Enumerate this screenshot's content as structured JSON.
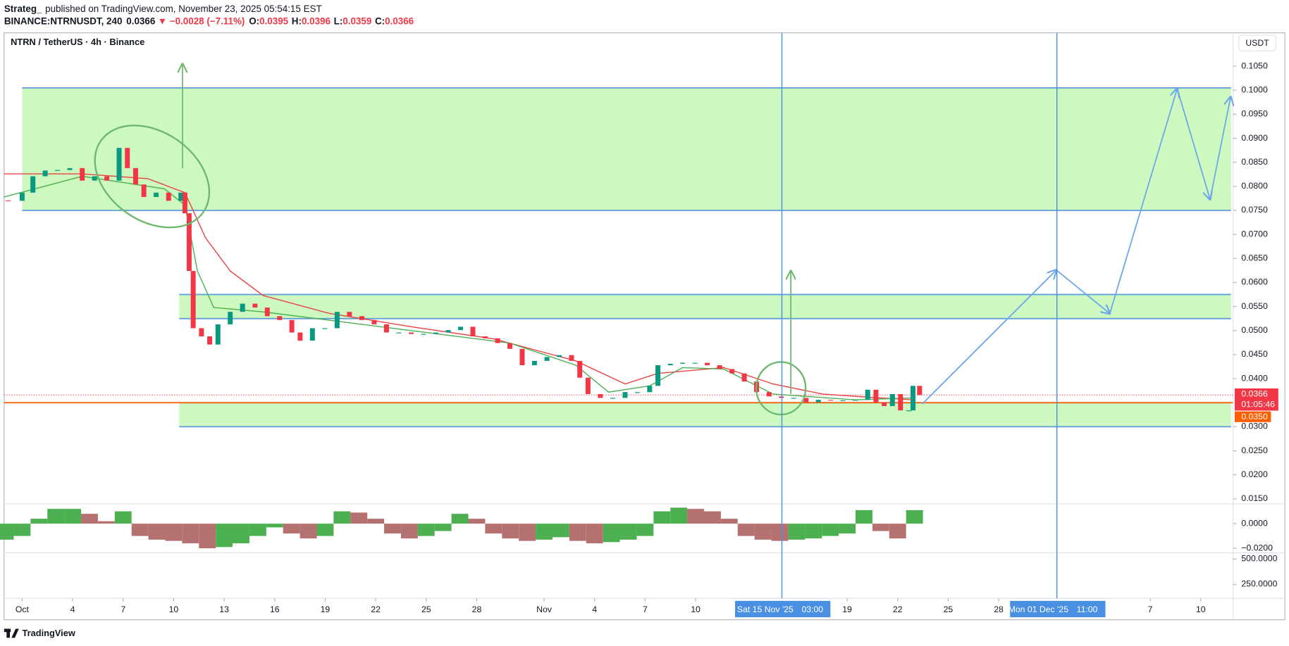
{
  "header": {
    "author": "Strateg_",
    "published": "published on TradingView.com, November 23, 2025 05:54:15 EST",
    "symbol": "BINANCE:NTRNUSDT, 240",
    "last": "0.0366",
    "change": "▼ −0.0028 (−7.11%)",
    "ohlc": [
      {
        "label": "O:",
        "value": "0.0395"
      },
      {
        "label": "H:",
        "value": "0.0396"
      },
      {
        "label": "L:",
        "value": "0.0359"
      },
      {
        "label": "C:",
        "value": "0.0366"
      }
    ]
  },
  "currency": "USDT",
  "footer": "TradingView",
  "chart_data": [
    {
      "type": "candlestick",
      "title": "NTRN / TetherUS · 4h · Binance",
      "xlim": [
        -1.07,
        71.8
      ],
      "ylim": [
        0.0141,
        0.1116
      ],
      "grid": false,
      "xticks": [
        {
          "value": 0,
          "label": "Oct"
        },
        {
          "value": 3,
          "label": "4"
        },
        {
          "value": 6,
          "label": "7"
        },
        {
          "value": 9,
          "label": "10"
        },
        {
          "value": 12,
          "label": "13"
        },
        {
          "value": 15,
          "label": "16"
        },
        {
          "value": 18,
          "label": "19"
        },
        {
          "value": 21,
          "label": "22"
        },
        {
          "value": 24,
          "label": "25"
        },
        {
          "value": 27,
          "label": "28"
        },
        {
          "value": 31,
          "label": "Nov"
        },
        {
          "value": 34,
          "label": "4"
        },
        {
          "value": 37,
          "label": "7"
        },
        {
          "value": 40,
          "label": "10"
        },
        {
          "value": 49,
          "label": "19"
        },
        {
          "value": 52,
          "label": "22"
        },
        {
          "value": 55,
          "label": "25"
        },
        {
          "value": 58,
          "label": "28"
        },
        {
          "value": 67,
          "label": "7"
        },
        {
          "value": 70,
          "label": "10"
        }
      ],
      "yticks": [
        {
          "value": 0.015,
          "label": "0.0150"
        },
        {
          "value": 0.02,
          "label": "0.0200"
        },
        {
          "value": 0.025,
          "label": "0.0250"
        },
        {
          "value": 0.03,
          "label": "0.0300"
        },
        {
          "value": 0.04,
          "label": "0.0400"
        },
        {
          "value": 0.045,
          "label": "0.0450"
        },
        {
          "value": 0.05,
          "label": "0.0500"
        },
        {
          "value": 0.055,
          "label": "0.0550"
        },
        {
          "value": 0.06,
          "label": "0.0600"
        },
        {
          "value": 0.065,
          "label": "0.0650"
        },
        {
          "value": 0.07,
          "label": "0.0700"
        },
        {
          "value": 0.075,
          "label": "0.0750"
        },
        {
          "value": 0.08,
          "label": "0.0800"
        },
        {
          "value": 0.085,
          "label": "0.0850"
        },
        {
          "value": 0.09,
          "label": "0.0900"
        },
        {
          "value": 0.095,
          "label": "0.0950"
        },
        {
          "value": 0.1,
          "label": "0.1000"
        },
        {
          "value": 0.105,
          "label": "0.1050"
        }
      ],
      "up_color": "#089981",
      "down_color": "#f23645",
      "series": [
        {
          "color": "#131722",
          "x": [
            -0.83,
            0,
            0.64,
            1.37,
            2.1,
            2.83,
            3.57,
            4.3,
            5.03,
            5.76,
            6.25,
            6.74,
            7.23,
            7.96,
            8.7,
            9.43,
            9.67,
            9.92,
            10.16,
            10.65,
            11.14,
            11.63,
            12.36,
            13.09,
            13.83,
            14.56,
            15.29,
            16.02,
            16.51,
            17.24,
            17.98,
            18.71,
            19.44,
            20.18,
            20.91,
            21.64,
            22.37,
            23.11,
            23.84,
            24.57,
            25.31,
            26.04,
            26.77,
            27.5,
            28.24,
            28.97,
            29.7,
            30.43,
            31.17,
            31.9,
            32.63,
            33.12,
            33.61,
            34.34,
            35.08,
            35.81,
            36.54,
            37.27,
            37.76,
            38.5,
            39.23,
            39.96,
            40.69,
            41.43,
            42.16,
            42.89,
            43.62,
            44.36,
            45.09,
            45.82,
            46.56,
            47.29,
            48.02,
            48.75,
            49.49,
            50.22,
            50.71,
            51.2,
            51.69,
            52.17,
            52.66,
            52.91,
            53.3
          ],
          "values": [
            0.077,
            0.0787,
            0.0821,
            0.0833,
            0.0834,
            0.0838,
            0.0812,
            0.0821,
            0.0812,
            0.088,
            0.0838,
            0.0804,
            0.0778,
            0.0787,
            0.077,
            0.0787,
            0.0744,
            0.0624,
            0.0505,
            0.0488,
            0.0471,
            0.0513,
            0.0539,
            0.0556,
            0.0548,
            0.053,
            0.0522,
            0.0496,
            0.0479,
            0.0505,
            0.0505,
            0.0539,
            0.053,
            0.0522,
            0.0513,
            0.0496,
            0.0496,
            0.0493,
            0.0493,
            0.0496,
            0.0501,
            0.0508,
            0.0488,
            0.0484,
            0.0474,
            0.0462,
            0.0428,
            0.0437,
            0.0445,
            0.0449,
            0.0437,
            0.0402,
            0.0368,
            0.036,
            0.036,
            0.0372,
            0.0372,
            0.0385,
            0.0428,
            0.0431,
            0.0433,
            0.0433,
            0.0428,
            0.042,
            0.0411,
            0.0394,
            0.0372,
            0.0363,
            0.036,
            0.036,
            0.0351,
            0.0356,
            0.0355,
            0.0355,
            0.0356,
            0.0377,
            0.0351,
            0.0343,
            0.0368,
            0.0334,
            0.0334,
            0.0385,
            0.0366
          ]
        },
        {
          "color": "#e84343",
          "x": [
            -1.07,
            3.57,
            7.47,
            9.67,
            10.89,
            12.36,
            14.31,
            18.22,
            23.11,
            27.99,
            32.88,
            35.81,
            37.76,
            41.67,
            44.6,
            47.53,
            50.46,
            52.91
          ],
          "values": [
            0.0826,
            0.0826,
            0.0816,
            0.0787,
            0.0693,
            0.0624,
            0.0573,
            0.0536,
            0.0508,
            0.0483,
            0.0437,
            0.0389,
            0.0411,
            0.0423,
            0.0389,
            0.0368,
            0.0361,
            0.0356
          ]
        },
        {
          "color": "#4caf50",
          "x": [
            -1.07,
            3.57,
            8.45,
            9.67,
            10.41,
            11.38,
            14.31,
            23.11,
            28.97,
            32.88,
            34.83,
            37.27,
            39.23,
            41.67,
            44.6,
            49.49,
            52.91
          ],
          "values": [
            0.0778,
            0.0821,
            0.0795,
            0.0761,
            0.0624,
            0.0548,
            0.0539,
            0.05,
            0.0474,
            0.0428,
            0.0372,
            0.0385,
            0.0423,
            0.042,
            0.0368,
            0.0356,
            0.036
          ]
        }
      ],
      "zones": [
        {
          "low": 0.075,
          "high": 0.1005,
          "from": 0,
          "to": 71.8
        },
        {
          "low": 0.0525,
          "high": 0.0575,
          "from": 9.33,
          "to": 71.8
        },
        {
          "low": 0.03,
          "high": 0.035,
          "from": 9.33,
          "to": 71.8
        }
      ],
      "zone_color": "#cdf9c0",
      "zone_line_color": "#5b9bd5",
      "last": {
        "value": 0.0366,
        "label": "0.0366",
        "countdown": "01:05:46",
        "color": "#f23645"
      },
      "level": {
        "value": 0.035,
        "label": "0.0350",
        "color": "#ff5d00"
      },
      "vlines": [
        {
          "value": 45.125,
          "label": "Sat 15 Nov '25",
          "time": "03:00"
        },
        {
          "value": 61.458,
          "label": "Mon 01 Dec '25",
          "time": "11:00"
        }
      ],
      "vline_color": "#4a90e2"
    },
    {
      "type": "bar",
      "ylim": [
        -0.0227,
        0.0153
      ],
      "yticks": [
        {
          "value": 0,
          "label": "0.0000"
        },
        {
          "value": -0.02,
          "label": "−0.0200"
        }
      ],
      "up_color": "#4caf50",
      "down_color": "#b5716f",
      "series": [
        {
          "x": [
            -1,
            0,
            1,
            2,
            3,
            4,
            5,
            6,
            7,
            8,
            9,
            10,
            11,
            12,
            13,
            14,
            15,
            16,
            17,
            18,
            19,
            20,
            21,
            22,
            23,
            24,
            25,
            26,
            27,
            28,
            29,
            30,
            31,
            32,
            33,
            34,
            35,
            36,
            37,
            38,
            39,
            40,
            41,
            42,
            43,
            44,
            45,
            46,
            47,
            48,
            49,
            50,
            51,
            52,
            53
          ],
          "values": [
            -0.013,
            -0.01,
            0.004,
            0.012,
            0.012,
            0.008,
            0.002,
            0.01,
            -0.01,
            -0.013,
            -0.014,
            -0.016,
            -0.02,
            -0.019,
            -0.016,
            -0.01,
            -0.003,
            -0.008,
            -0.012,
            -0.01,
            0.01,
            0.009,
            0.004,
            -0.008,
            -0.012,
            -0.01,
            -0.006,
            0.008,
            0.004,
            -0.008,
            -0.012,
            -0.014,
            -0.013,
            -0.011,
            -0.014,
            -0.016,
            -0.015,
            -0.013,
            -0.01,
            0.01,
            0.013,
            0.012,
            0.01,
            0.004,
            -0.01,
            -0.013,
            -0.014,
            -0.013,
            -0.012,
            -0.01,
            -0.008,
            0.011,
            -0.006,
            -0.012,
            0.011
          ]
        }
      ]
    },
    {
      "type": "bar",
      "ylim": [
        121,
        548
      ],
      "yticks": [
        {
          "value": 500,
          "label": "500.0000"
        },
        {
          "value": 250,
          "label": "250.0000"
        }
      ]
    }
  ]
}
